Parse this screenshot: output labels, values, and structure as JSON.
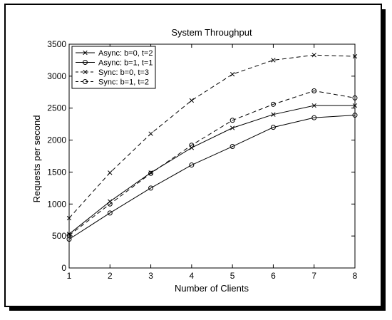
{
  "chart_data": {
    "type": "line",
    "title": "System Throughput",
    "xlabel": "Number of Clients",
    "ylabel": "Requests per second",
    "x": [
      1,
      2,
      3,
      4,
      5,
      6,
      7,
      8
    ],
    "xlim": [
      1,
      8
    ],
    "ylim": [
      0,
      3500
    ],
    "xticks": [
      1,
      2,
      3,
      4,
      5,
      6,
      7,
      8
    ],
    "yticks": [
      0,
      500,
      1000,
      1500,
      2000,
      2500,
      3000,
      3500
    ],
    "grid": false,
    "legend_position": "top-left",
    "series": [
      {
        "name": "Async: b=0, t=2",
        "marker": "x",
        "line": "solid",
        "values": [
          530,
          1040,
          1490,
          1880,
          2190,
          2400,
          2540,
          2540
        ]
      },
      {
        "name": "Async: b=1, t=1",
        "marker": "o",
        "line": "solid",
        "values": [
          450,
          860,
          1250,
          1610,
          1900,
          2200,
          2350,
          2390
        ]
      },
      {
        "name": "Sync: b=0, t=3",
        "marker": "x",
        "line": "dashed",
        "values": [
          780,
          1490,
          2100,
          2620,
          3030,
          3250,
          3330,
          3310
        ]
      },
      {
        "name": "Sync: b=1, t=2",
        "marker": "o",
        "line": "dashed",
        "values": [
          510,
          1000,
          1480,
          1920,
          2310,
          2560,
          2770,
          2660
        ]
      }
    ]
  }
}
